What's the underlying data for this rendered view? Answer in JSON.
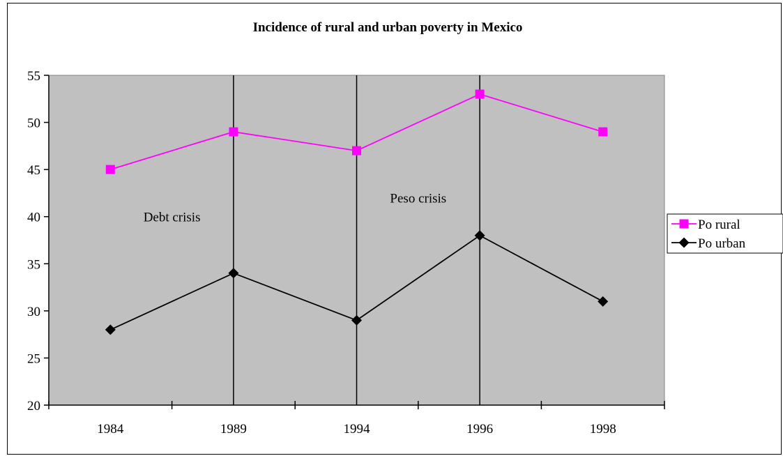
{
  "chart_data": {
    "type": "line",
    "title": "Incidence of rural and urban poverty in Mexico",
    "xlabel": "",
    "ylabel": "",
    "categories": [
      "1984",
      "1989",
      "1994",
      "1996",
      "1998"
    ],
    "ylim": [
      20,
      55
    ],
    "yticks": [
      20,
      25,
      30,
      35,
      40,
      45,
      50,
      55
    ],
    "series": [
      {
        "name": "Po rural",
        "values": [
          45,
          49,
          47,
          53,
          49
        ],
        "color": "#ff00ff",
        "marker": "square"
      },
      {
        "name": "Po urban",
        "values": [
          28,
          34,
          29,
          38,
          31
        ],
        "color": "#000000",
        "marker": "diamond"
      }
    ],
    "vertical_lines_at": [
      "1989",
      "1994",
      "1996"
    ],
    "annotations": [
      {
        "text": "Debt crisis"
      },
      {
        "text": "Peso crisis"
      }
    ],
    "plot_background": "#c0c0c0",
    "grid": false,
    "legend_position": "right"
  }
}
